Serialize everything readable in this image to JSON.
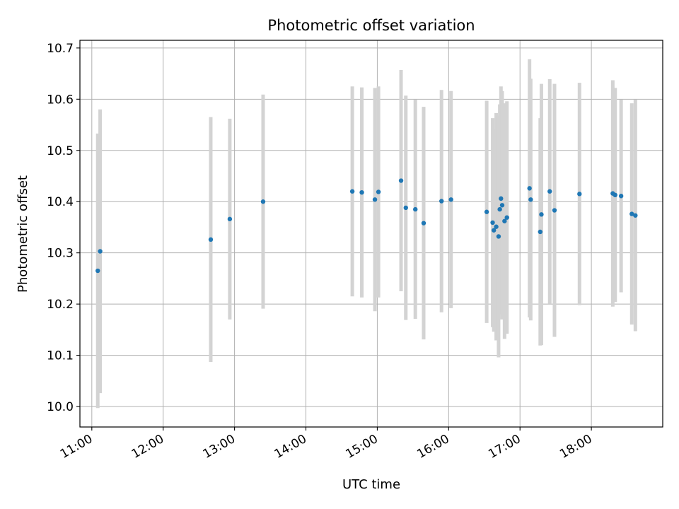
{
  "chart_data": {
    "type": "scatter",
    "title": "Photometric offset variation",
    "xlabel": "UTC time",
    "ylabel": "Photometric offset",
    "grid": true,
    "xlim": [
      "10:50",
      "19:00"
    ],
    "ylim": [
      9.96,
      10.715
    ],
    "x_ticks": [
      "11:00",
      "12:00",
      "13:00",
      "14:00",
      "15:00",
      "16:00",
      "17:00",
      "18:00"
    ],
    "y_ticks": [
      "10.0",
      "10.1",
      "10.2",
      "10.3",
      "10.4",
      "10.5",
      "10.6",
      "10.7"
    ],
    "colors": {
      "marker": "#1f77b4",
      "errorbar": "#d3d3d3",
      "grid": "#b0b0b0"
    },
    "points": [
      {
        "x": "11:05",
        "y": 10.265,
        "err": 0.268
      },
      {
        "x": "11:07",
        "y": 10.303,
        "err": 0.277
      },
      {
        "x": "12:40",
        "y": 10.326,
        "err": 0.239
      },
      {
        "x": "12:56",
        "y": 10.366,
        "err": 0.196
      },
      {
        "x": "13:24",
        "y": 10.4,
        "err": 0.209
      },
      {
        "x": "14:39",
        "y": 10.42,
        "err": 0.205
      },
      {
        "x": "14:47",
        "y": 10.418,
        "err": 0.205
      },
      {
        "x": "14:58",
        "y": 10.404,
        "err": 0.218
      },
      {
        "x": "15:01",
        "y": 10.419,
        "err": 0.206
      },
      {
        "x": "15:20",
        "y": 10.441,
        "err": 0.216
      },
      {
        "x": "15:24",
        "y": 10.388,
        "err": 0.219
      },
      {
        "x": "15:32",
        "y": 10.385,
        "err": 0.214
      },
      {
        "x": "15:39",
        "y": 10.358,
        "err": 0.227
      },
      {
        "x": "15:54",
        "y": 10.401,
        "err": 0.217
      },
      {
        "x": "16:02",
        "y": 10.404,
        "err": 0.212
      },
      {
        "x": "16:32",
        "y": 10.38,
        "err": 0.217
      },
      {
        "x": "16:37",
        "y": 10.359,
        "err": 0.204
      },
      {
        "x": "16:38",
        "y": 10.344,
        "err": 0.198
      },
      {
        "x": "16:40",
        "y": 10.351,
        "err": 0.222
      },
      {
        "x": "16:42",
        "y": 10.332,
        "err": 0.236
      },
      {
        "x": "16:43",
        "y": 10.385,
        "err": 0.205
      },
      {
        "x": "16:44",
        "y": 10.406,
        "err": 0.219
      },
      {
        "x": "16:45",
        "y": 10.393,
        "err": 0.223
      },
      {
        "x": "16:47",
        "y": 10.362,
        "err": 0.23
      },
      {
        "x": "16:49",
        "y": 10.369,
        "err": 0.227
      },
      {
        "x": "17:08",
        "y": 10.426,
        "err": 0.252
      },
      {
        "x": "17:09",
        "y": 10.404,
        "err": 0.236
      },
      {
        "x": "17:17",
        "y": 10.341,
        "err": 0.222
      },
      {
        "x": "17:18",
        "y": 10.375,
        "err": 0.255
      },
      {
        "x": "17:25",
        "y": 10.42,
        "err": 0.219
      },
      {
        "x": "17:29",
        "y": 10.383,
        "err": 0.247
      },
      {
        "x": "17:50",
        "y": 10.415,
        "err": 0.217
      },
      {
        "x": "18:18",
        "y": 10.416,
        "err": 0.221
      },
      {
        "x": "18:20",
        "y": 10.413,
        "err": 0.209
      },
      {
        "x": "18:25",
        "y": 10.411,
        "err": 0.188
      },
      {
        "x": "18:34",
        "y": 10.376,
        "err": 0.216
      },
      {
        "x": "18:37",
        "y": 10.373,
        "err": 0.226
      }
    ]
  }
}
